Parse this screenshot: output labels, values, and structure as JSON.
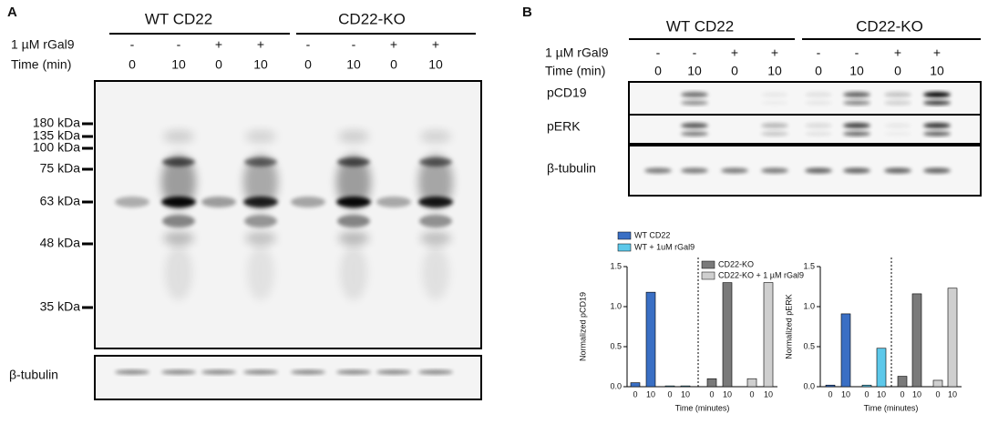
{
  "panel_a": {
    "label": "A",
    "groups": [
      "WT CD22",
      "CD22-KO"
    ],
    "rows": [
      {
        "label": "1 µM rGal9",
        "values": [
          "-",
          "-",
          "+",
          "+",
          "-",
          "-",
          "+",
          "+"
        ]
      },
      {
        "label": "Time (min)",
        "values": [
          "0",
          "10",
          "0",
          "10",
          "0",
          "10",
          "0",
          "10"
        ]
      }
    ],
    "markers": [
      "180 kDa",
      "135 kDa",
      "100 kDa",
      "75 kDa",
      "63 kDa",
      "48 kDa",
      "35 kDa"
    ],
    "loading": "β-tubulin"
  },
  "panel_b": {
    "label": "B",
    "groups": [
      "WT CD22",
      "CD22-KO"
    ],
    "rows": [
      {
        "label": "1 µM rGal9",
        "values": [
          "-",
          "-",
          "+",
          "+",
          "-",
          "-",
          "+",
          "+"
        ]
      },
      {
        "label": "Time (min)",
        "values": [
          "0",
          "10",
          "0",
          "10",
          "0",
          "10",
          "0",
          "10"
        ]
      }
    ],
    "blots": [
      "pCD19",
      "pERK",
      "β-tubulin"
    ]
  },
  "chart_data": [
    {
      "type": "bar",
      "ylabel": "Normalized pCD19",
      "xlabel": "Time (minutes)",
      "categories": [
        "0",
        "10",
        "0",
        "10",
        "0",
        "10",
        "0",
        "10"
      ],
      "ylim": [
        0,
        1.5
      ],
      "yticks": [
        {
          "value": 0,
          "label": "0.0"
        },
        0.5,
        {
          "value": 1,
          "label": "1.0"
        },
        1.5
      ],
      "series": [
        {
          "name": "WT CD22",
          "color": "#3a6fc4",
          "values": [
            0.05,
            1.18,
            null,
            null,
            null,
            null,
            null,
            null
          ]
        },
        {
          "name": "WT + 1uM rGal9",
          "color": "#5cc8ea",
          "values": [
            null,
            null,
            0.01,
            0.01,
            null,
            null,
            null,
            null
          ]
        },
        {
          "name": "CD22-KO",
          "color": "#7a7a7a",
          "values": [
            null,
            null,
            null,
            null,
            0.1,
            1.3,
            null,
            null
          ]
        },
        {
          "name": "CD22-KO + 1 µM rGal9",
          "color": "#cfcfcf",
          "values": [
            null,
            null,
            null,
            null,
            null,
            null,
            0.1,
            1.3
          ]
        }
      ]
    },
    {
      "type": "bar",
      "ylabel": "Normalized pERK",
      "xlabel": "Time (minutes)",
      "categories": [
        "0",
        "10",
        "0",
        "10",
        "0",
        "10",
        "0",
        "10"
      ],
      "ylim": [
        0,
        1.5
      ],
      "yticks": [
        {
          "value": 0,
          "label": "0.0"
        },
        0.5,
        {
          "value": 1,
          "label": "1.0"
        },
        1.5
      ],
      "series": [
        {
          "color": "#3a6fc4",
          "values": [
            0.02,
            0.91,
            null,
            null,
            null,
            null,
            null,
            null
          ]
        },
        {
          "color": "#5cc8ea",
          "values": [
            null,
            null,
            0.02,
            0.48,
            null,
            null,
            null,
            null
          ]
        },
        {
          "color": "#7a7a7a",
          "values": [
            null,
            null,
            null,
            null,
            0.13,
            1.16,
            null,
            null
          ]
        },
        {
          "color": "#cfcfcf",
          "values": [
            null,
            null,
            null,
            null,
            null,
            null,
            0.08,
            1.23
          ]
        }
      ]
    }
  ]
}
